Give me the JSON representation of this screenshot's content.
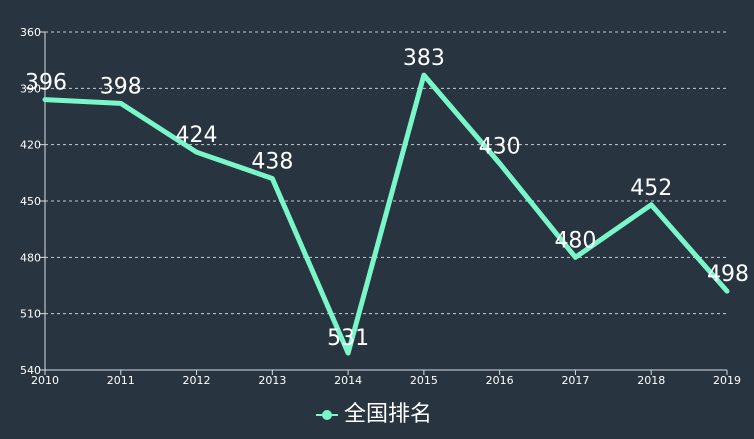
{
  "chart_data": {
    "type": "line",
    "x": [
      "2010",
      "2011",
      "2012",
      "2013",
      "2014",
      "2015",
      "2016",
      "2017",
      "2018",
      "2019"
    ],
    "series": [
      {
        "name": "全国排名",
        "values": [
          396,
          398,
          424,
          438,
          531,
          383,
          430,
          480,
          452,
          498
        ]
      }
    ],
    "ylim": [
      360,
      540
    ],
    "yticks": [
      "360",
      "390",
      "420",
      "450",
      "480",
      "510",
      "540"
    ],
    "y_inverted": true,
    "grid": "horizontal dashed",
    "legend": "bottom-center",
    "data_labels": true,
    "colors": {
      "background": "#283440",
      "line": "#7af7c8",
      "grid": "#d8dde2",
      "text": "#ffffff"
    }
  }
}
